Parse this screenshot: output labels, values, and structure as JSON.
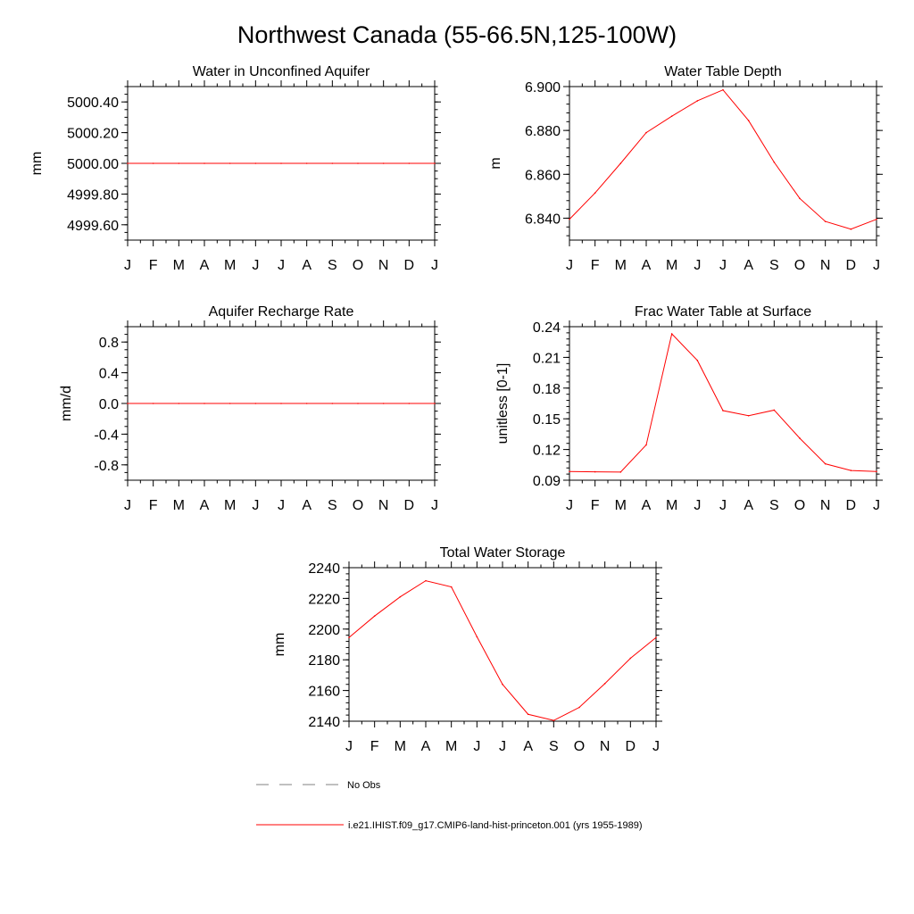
{
  "figure": {
    "title": "Northwest Canada (55-66.5N,125-100W)",
    "background": "#ffffff",
    "series_color": "#ff0000",
    "obs_color": "#808080"
  },
  "legend": {
    "obs_label": "No Obs",
    "model_label": "i.e21.IHIST.f09_g17.CMIP6-land-hist-princeton.001 (yrs 1955-1989)"
  },
  "chart_data": [
    {
      "id": "water-unconfined-aquifer",
      "type": "line",
      "title": "Water in Unconfined Aquifer",
      "xlabel": "",
      "ylabel": "mm",
      "categories": [
        "J",
        "F",
        "M",
        "A",
        "M",
        "J",
        "J",
        "A",
        "S",
        "O",
        "N",
        "D",
        "J"
      ],
      "ylim": [
        4999.5,
        5000.5
      ],
      "yticks": [
        4999.6,
        4999.8,
        5000.0,
        5000.2,
        5000.4
      ],
      "ytick_labels": [
        "4999.60",
        "4999.80",
        "5000.00",
        "5000.20",
        "5000.40"
      ],
      "yminor": 0.05,
      "grid": false,
      "series": [
        {
          "values": [
            5000,
            5000,
            5000,
            5000,
            5000,
            5000,
            5000,
            5000,
            5000,
            5000,
            5000,
            5000,
            5000
          ]
        }
      ]
    },
    {
      "id": "water-table-depth",
      "type": "line",
      "title": "Water Table Depth",
      "xlabel": "",
      "ylabel": "m",
      "categories": [
        "J",
        "F",
        "M",
        "A",
        "M",
        "J",
        "J",
        "A",
        "S",
        "O",
        "N",
        "D",
        "J"
      ],
      "ylim": [
        6.83,
        6.9
      ],
      "yticks": [
        6.84,
        6.86,
        6.88,
        6.9
      ],
      "ytick_labels": [
        "6.840",
        "6.860",
        "6.880",
        "6.900"
      ],
      "yminor": 0.004,
      "grid": false,
      "series": [
        {
          "values": [
            6.8395,
            6.8515,
            6.865,
            6.879,
            6.8865,
            6.8935,
            6.8985,
            6.8845,
            6.8655,
            6.849,
            6.8385,
            6.835,
            6.8395
          ]
        }
      ]
    },
    {
      "id": "aquifer-recharge-rate",
      "type": "line",
      "title": "Aquifer Recharge Rate",
      "xlabel": "",
      "ylabel": "mm/d",
      "categories": [
        "J",
        "F",
        "M",
        "A",
        "M",
        "J",
        "J",
        "A",
        "S",
        "O",
        "N",
        "D",
        "J"
      ],
      "ylim": [
        -1.0,
        1.0
      ],
      "yticks": [
        -0.8,
        -0.4,
        0.0,
        0.4,
        0.8
      ],
      "ytick_labels": [
        "-0.8",
        "-0.4",
        "0.0",
        "0.4",
        "0.8"
      ],
      "yminor": 0.1,
      "grid": false,
      "series": [
        {
          "values": [
            0,
            0,
            0,
            0,
            0,
            0,
            0,
            0,
            0,
            0,
            0,
            0,
            0
          ]
        }
      ]
    },
    {
      "id": "frac-water-table-surface",
      "type": "line",
      "title": "Frac Water Table at Surface",
      "xlabel": "",
      "ylabel": "unitless [0-1]",
      "categories": [
        "J",
        "F",
        "M",
        "A",
        "M",
        "J",
        "J",
        "A",
        "S",
        "O",
        "N",
        "D",
        "J"
      ],
      "ylim": [
        0.09,
        0.24
      ],
      "yticks": [
        0.09,
        0.12,
        0.15,
        0.18,
        0.21,
        0.24
      ],
      "ytick_labels": [
        "0.09",
        "0.12",
        "0.15",
        "0.18",
        "0.21",
        "0.24"
      ],
      "yminor": 0.006,
      "grid": false,
      "series": [
        {
          "values": [
            0.0985,
            0.0982,
            0.098,
            0.1245,
            0.233,
            0.207,
            0.158,
            0.153,
            0.1585,
            0.131,
            0.106,
            0.0995,
            0.0985
          ]
        }
      ]
    },
    {
      "id": "total-water-storage",
      "type": "line",
      "title": "Total Water Storage",
      "xlabel": "",
      "ylabel": "mm",
      "categories": [
        "J",
        "F",
        "M",
        "A",
        "M",
        "J",
        "J",
        "A",
        "S",
        "O",
        "N",
        "D",
        "J"
      ],
      "ylim": [
        2140,
        2240
      ],
      "yticks": [
        2140,
        2160,
        2180,
        2200,
        2220,
        2240
      ],
      "ytick_labels": [
        "2140",
        "2160",
        "2180",
        "2200",
        "2220",
        "2240"
      ],
      "yminor": 4,
      "grid": false,
      "series": [
        {
          "values": [
            2194.5,
            2208.5,
            2221.0,
            2231.5,
            2227.5,
            2195.0,
            2164.0,
            2144.5,
            2140.5,
            2149.0,
            2164.5,
            2181.0,
            2194.5
          ]
        }
      ]
    }
  ]
}
